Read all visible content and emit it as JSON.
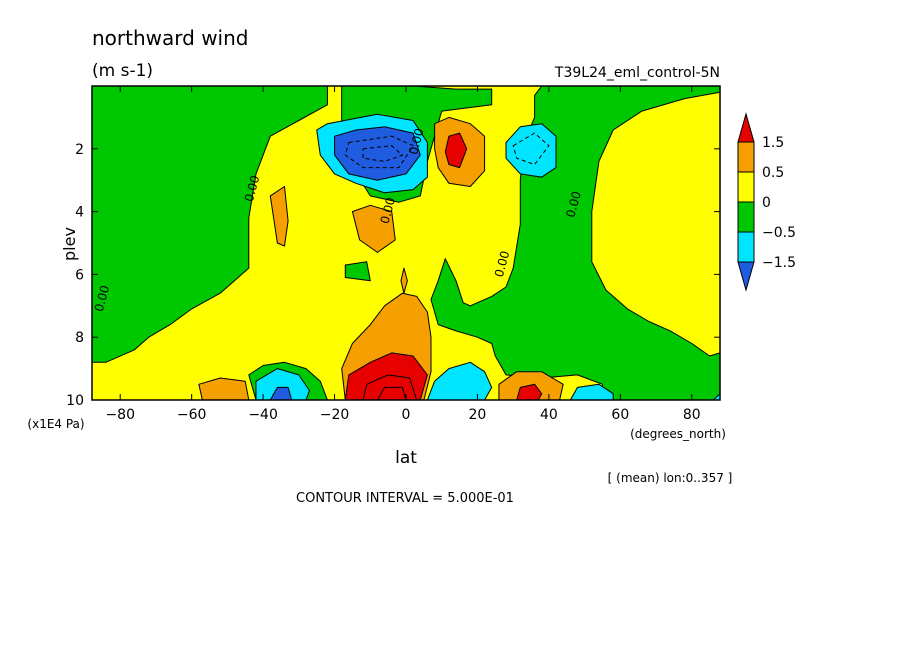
{
  "chart_data": {
    "type": "heatmap",
    "title": "northward wind",
    "units": "(m s-1)",
    "run_label": "T39L24_eml_control-5N",
    "xlabel": "lat",
    "x_units_label": "(degrees_north)",
    "ylabel": "plev",
    "y_units_label": "(x1E4 Pa)",
    "mean_note": "[ (mean) lon:0..357 ]",
    "contour_interval_note": "CONTOUR INTERVAL = 5.000E-01",
    "xlim": [
      -87.9,
      87.9
    ],
    "ylim": [
      10,
      0
    ],
    "x_ticks": [
      -80,
      -60,
      -40,
      -20,
      0,
      20,
      40,
      60,
      80
    ],
    "x_tick_labels": [
      "−80",
      "−60",
      "−40",
      "−20",
      "0",
      "20",
      "40",
      "60",
      "80"
    ],
    "y_ticks": [
      2,
      4,
      6,
      8,
      10
    ],
    "y_tick_labels": [
      "2",
      "4",
      "6",
      "8",
      "10"
    ],
    "colorbar": {
      "colors": [
        "#1f5ce0",
        "#00e5ff",
        "#00c800",
        "#ffff00",
        "#f5a000",
        "#e60000"
      ],
      "level_labels": [
        "1.5",
        "0.5",
        "0",
        "−0.5",
        "−1.5"
      ]
    },
    "contour_labels": [
      {
        "text": "0.00",
        "lat": -42,
        "plev": 3.3
      },
      {
        "text": "0.00",
        "lat": -84,
        "plev": 6.8
      },
      {
        "text": "0.00",
        "lat": -4,
        "plev": 4.0
      },
      {
        "text": "0.00",
        "lat": 4,
        "plev": 1.8
      },
      {
        "text": "0.00",
        "lat": 28,
        "plev": 5.7
      },
      {
        "text": "0.00",
        "lat": 48,
        "plev": 3.8
      }
    ],
    "regions": [
      {
        "fill": "#00c800",
        "pts": [
          [
            -87.9,
            0
          ],
          [
            -22,
            0
          ],
          [
            -22,
            0.6
          ],
          [
            -30,
            1.1
          ],
          [
            -38,
            1.6
          ],
          [
            -42,
            2.8
          ],
          [
            -44,
            4.2
          ],
          [
            -44,
            5.8
          ],
          [
            -52,
            6.6
          ],
          [
            -60,
            7.1
          ],
          [
            -66,
            7.6
          ],
          [
            -72,
            8.0
          ],
          [
            -76,
            8.4
          ],
          [
            -84,
            8.8
          ],
          [
            -87.9,
            8.8
          ]
        ]
      },
      {
        "fill": "#00c800",
        "pts": [
          [
            -18,
            0
          ],
          [
            2,
            0
          ],
          [
            14,
            0.1
          ],
          [
            24,
            0.1
          ],
          [
            24,
            0.6
          ],
          [
            10,
            0.8
          ],
          [
            6,
            2.4
          ],
          [
            4,
            3.5
          ],
          [
            -2,
            3.7
          ],
          [
            -10,
            3.5
          ],
          [
            -15,
            2.6
          ],
          [
            -18,
            1.6
          ]
        ]
      },
      {
        "fill": "#00c800",
        "pts": [
          [
            -17,
            5.7
          ],
          [
            -11,
            5.6
          ],
          [
            -10,
            6.2
          ],
          [
            -17,
            6.1
          ]
        ]
      },
      {
        "fill": "#00c800",
        "pts": [
          [
            38,
            0
          ],
          [
            87.9,
            0
          ],
          [
            87.9,
            0.2
          ],
          [
            78,
            0.4
          ],
          [
            66,
            0.8
          ],
          [
            58,
            1.4
          ],
          [
            54,
            2.4
          ],
          [
            52,
            4.0
          ],
          [
            52,
            5.6
          ],
          [
            56,
            6.5
          ],
          [
            62,
            7.1
          ],
          [
            68,
            7.5
          ],
          [
            74,
            7.8
          ],
          [
            80,
            8.2
          ],
          [
            85,
            8.6
          ],
          [
            87.9,
            8.5
          ],
          [
            87.9,
            10
          ],
          [
            55,
            10
          ],
          [
            55,
            9.5
          ],
          [
            48,
            9.2
          ],
          [
            38,
            9.3
          ],
          [
            28,
            9.2
          ],
          [
            25,
            8.6
          ],
          [
            24,
            8.2
          ],
          [
            20,
            8.0
          ],
          [
            14,
            7.8
          ],
          [
            9,
            7.6
          ],
          [
            7,
            6.8
          ],
          [
            9,
            6.2
          ],
          [
            11,
            5.5
          ],
          [
            14,
            6.2
          ],
          [
            16,
            6.9
          ],
          [
            18,
            7.0
          ],
          [
            24,
            6.7
          ],
          [
            28,
            6.4
          ],
          [
            30,
            5.8
          ],
          [
            32,
            4.4
          ],
          [
            32,
            3.0
          ],
          [
            33,
            1.8
          ],
          [
            36,
            1.0
          ],
          [
            36,
            0.3
          ]
        ]
      },
      {
        "fill": "#00c800",
        "pts": [
          [
            -31,
            10
          ],
          [
            -42,
            10
          ],
          [
            -44,
            9.2
          ],
          [
            -40,
            8.9
          ],
          [
            -34,
            8.8
          ],
          [
            -28,
            9.0
          ],
          [
            -24,
            9.4
          ],
          [
            -22,
            10
          ]
        ]
      },
      {
        "fill": "#f5a000",
        "pts": [
          [
            -38,
            3.5
          ],
          [
            -34,
            3.2
          ],
          [
            -33,
            4.3
          ],
          [
            -34,
            5.1
          ],
          [
            -36,
            5.0
          ]
        ]
      },
      {
        "fill": "#f5a000",
        "pts": [
          [
            -15,
            4.0
          ],
          [
            -10,
            3.8
          ],
          [
            -4,
            4.0
          ],
          [
            -3,
            4.9
          ],
          [
            -8,
            5.3
          ],
          [
            -13,
            4.9
          ]
        ]
      },
      {
        "fill": "#f5a000",
        "pts": [
          [
            -0.6,
            5.8
          ],
          [
            0.4,
            6.2
          ],
          [
            -0.6,
            6.6
          ],
          [
            -1.4,
            6.2
          ]
        ]
      },
      {
        "fill": "#f5a000",
        "pts": [
          [
            8,
            1.2
          ],
          [
            12,
            1.0
          ],
          [
            18,
            1.2
          ],
          [
            22,
            1.6
          ],
          [
            22,
            2.7
          ],
          [
            18,
            3.2
          ],
          [
            12,
            3.1
          ],
          [
            9,
            2.6
          ],
          [
            8,
            2.0
          ]
        ]
      },
      {
        "fill": "#e60000",
        "pts": [
          [
            12,
            1.6
          ],
          [
            15,
            1.5
          ],
          [
            17,
            2.0
          ],
          [
            15,
            2.6
          ],
          [
            12,
            2.5
          ],
          [
            11,
            2.1
          ]
        ]
      },
      {
        "fill": "#00e5ff",
        "pts": [
          [
            -25,
            1.4
          ],
          [
            -22,
            1.2
          ],
          [
            -8,
            0.9
          ],
          [
            2,
            1.1
          ],
          [
            6,
            1.8
          ],
          [
            6,
            2.9
          ],
          [
            2,
            3.3
          ],
          [
            -6,
            3.4
          ],
          [
            -14,
            3.1
          ],
          [
            -20,
            2.8
          ],
          [
            -24,
            2.2
          ]
        ]
      },
      {
        "fill": "#1f5ce0",
        "pts": [
          [
            -20,
            1.6
          ],
          [
            -14,
            1.4
          ],
          [
            -6,
            1.3
          ],
          [
            2,
            1.5
          ],
          [
            4,
            2.2
          ],
          [
            0,
            2.8
          ],
          [
            -8,
            3.0
          ],
          [
            -16,
            2.8
          ],
          [
            -20,
            2.2
          ]
        ]
      },
      {
        "fill": "#00e5ff",
        "pts": [
          [
            28,
            1.8
          ],
          [
            32,
            1.3
          ],
          [
            38,
            1.2
          ],
          [
            42,
            1.6
          ],
          [
            42,
            2.6
          ],
          [
            38,
            2.9
          ],
          [
            32,
            2.8
          ],
          [
            28,
            2.3
          ]
        ]
      },
      {
        "fill": "#f5a000",
        "pts": [
          [
            -17,
            10
          ],
          [
            -18,
            9.0
          ],
          [
            -15,
            8.2
          ],
          [
            -10,
            7.6
          ],
          [
            -6,
            7.0
          ],
          [
            -1,
            6.6
          ],
          [
            3,
            6.7
          ],
          [
            6,
            7.2
          ],
          [
            7,
            8.0
          ],
          [
            7,
            9.1
          ],
          [
            5,
            10
          ]
        ]
      },
      {
        "fill": "#e60000",
        "pts": [
          [
            -17,
            10
          ],
          [
            -16,
            9.2
          ],
          [
            -10,
            8.8
          ],
          [
            -4,
            8.5
          ],
          [
            2,
            8.6
          ],
          [
            6,
            9.2
          ],
          [
            4,
            10
          ]
        ]
      },
      {
        "fill": "#00e5ff",
        "pts": [
          [
            6,
            10
          ],
          [
            8,
            9.4
          ],
          [
            12,
            9.0
          ],
          [
            18,
            8.8
          ],
          [
            22,
            9.1
          ],
          [
            24,
            9.6
          ],
          [
            22,
            10
          ]
        ]
      },
      {
        "fill": "#f5a000",
        "pts": [
          [
            -57,
            10
          ],
          [
            -58,
            9.5
          ],
          [
            -52,
            9.3
          ],
          [
            -45,
            9.4
          ],
          [
            -44,
            10
          ]
        ]
      },
      {
        "fill": "#00e5ff",
        "pts": [
          [
            -42,
            10
          ],
          [
            -42,
            9.4
          ],
          [
            -36,
            9.0
          ],
          [
            -30,
            9.2
          ],
          [
            -27,
            9.7
          ],
          [
            -28,
            10
          ]
        ]
      },
      {
        "fill": "#1f5ce0",
        "pts": [
          [
            -38,
            10
          ],
          [
            -36,
            9.6
          ],
          [
            -33,
            9.6
          ],
          [
            -32,
            10
          ]
        ]
      },
      {
        "fill": "#f5a000",
        "pts": [
          [
            26,
            10
          ],
          [
            26,
            9.5
          ],
          [
            31,
            9.1
          ],
          [
            38,
            9.1
          ],
          [
            44,
            9.5
          ],
          [
            43,
            10
          ]
        ]
      },
      {
        "fill": "#e60000",
        "pts": [
          [
            31,
            10
          ],
          [
            32,
            9.6
          ],
          [
            36,
            9.5
          ],
          [
            38,
            9.8
          ],
          [
            37,
            10
          ]
        ]
      },
      {
        "fill": "#00e5ff",
        "pts": [
          [
            46,
            10
          ],
          [
            48,
            9.6
          ],
          [
            54,
            9.5
          ],
          [
            58,
            9.8
          ],
          [
            58,
            10
          ]
        ]
      },
      {
        "fill": "#00e5ff",
        "pts": [
          [
            86,
            10
          ],
          [
            87.9,
            9.8
          ],
          [
            87.9,
            10
          ]
        ]
      }
    ]
  }
}
